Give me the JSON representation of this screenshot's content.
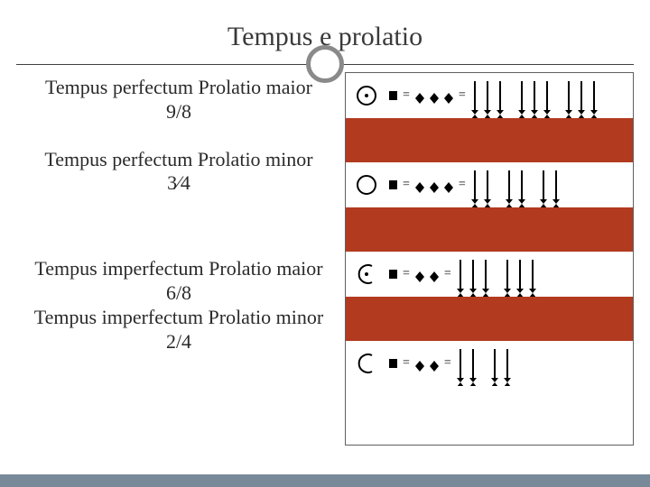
{
  "title": "Tempus e prolatio",
  "items": [
    {
      "name": "Tempus perfectum Prolatio maior",
      "sig": "9/8"
    },
    {
      "name": "Tempus perfectum Prolatio minor",
      "sig": "3⁄4"
    },
    {
      "name": "Tempus imperfectum Prolatio maior",
      "sig": "6/8"
    },
    {
      "name": "Tempus imperfectum Prolatio minor",
      "sig": "2/4"
    }
  ],
  "diagram": {
    "row_height_notation": 50,
    "row_height_red": 49,
    "red_color": "#b23a1f",
    "rows": [
      {
        "sign": "circle-dot",
        "sb": 3,
        "min_per_sb": 3
      },
      {
        "sign": "circle",
        "sb": 3,
        "min_per_sb": 2
      },
      {
        "sign": "halfc-dot",
        "sb": 2,
        "min_per_sb": 3
      },
      {
        "sign": "halfc",
        "sb": 2,
        "min_per_sb": 2
      }
    ],
    "colors": {
      "border": "#606060",
      "background": "#ffffff",
      "note": "#000000"
    }
  },
  "decor": {
    "bottom_bar_color": "#788a9a",
    "circle_border_color": "#8a8a8a"
  }
}
